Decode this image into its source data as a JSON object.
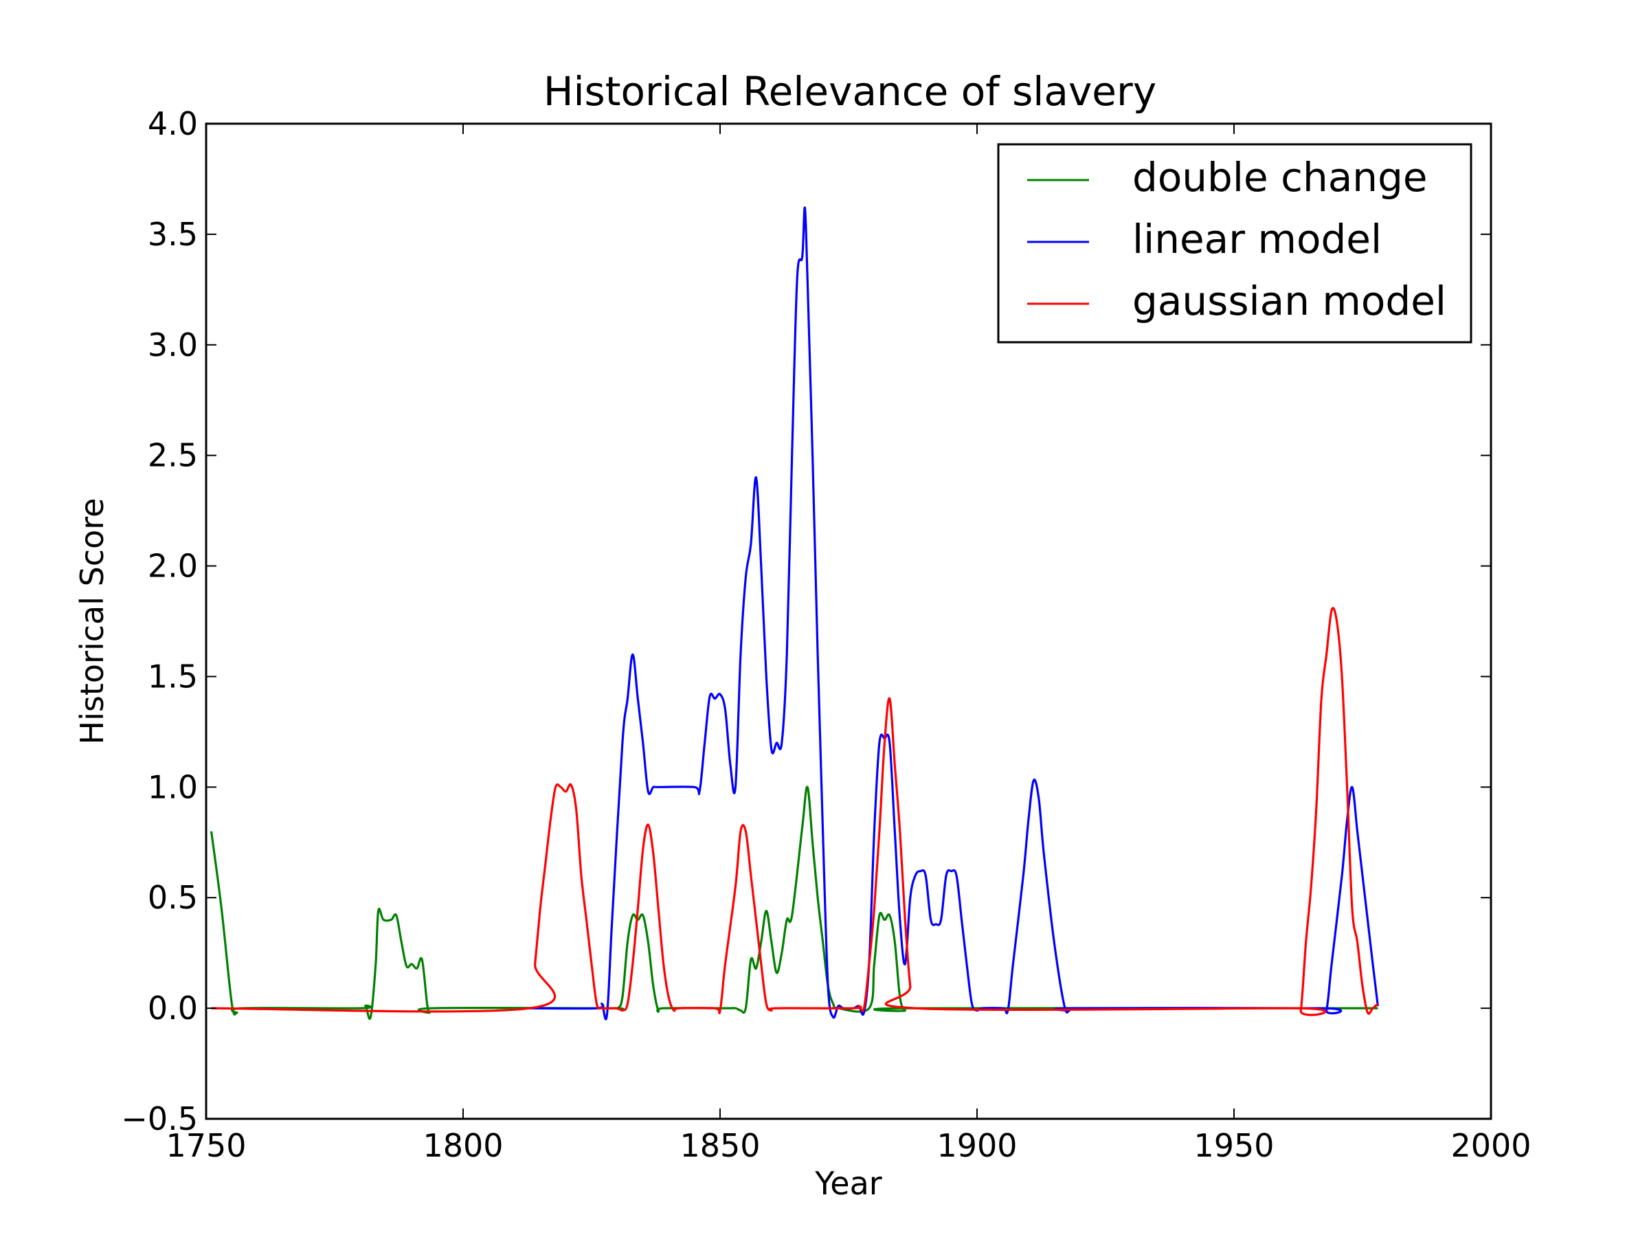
{
  "chart_data": {
    "type": "line",
    "title": "Historical Relevance of slavery",
    "xlabel": "Year",
    "ylabel": "Historical Score",
    "xlim": [
      1750,
      2000
    ],
    "ylim": [
      -0.5,
      4.0
    ],
    "xticks": [
      1750,
      1800,
      1850,
      1900,
      1950,
      2000
    ],
    "xtick_labels": [
      "1750",
      "1800",
      "1850",
      "1900",
      "1950",
      "2000"
    ],
    "yticks": [
      -0.5,
      0.0,
      0.5,
      1.0,
      1.5,
      2.0,
      2.5,
      3.0,
      3.5,
      4.0
    ],
    "ytick_labels": [
      "−0.5",
      "0.0",
      "0.5",
      "1.0",
      "1.5",
      "2.0",
      "2.5",
      "3.0",
      "3.5",
      "4.0"
    ],
    "grid": false,
    "legend_position": "top-right",
    "series": [
      {
        "name": "double change",
        "color": "#008000",
        "points": [
          [
            1751,
            0.8
          ],
          [
            1753,
            0.45
          ],
          [
            1755,
            0.02
          ],
          [
            1756,
            -0.02
          ],
          [
            1757,
            0
          ],
          [
            1780,
            0
          ],
          [
            1781,
            0.01
          ],
          [
            1782,
            -0.04
          ],
          [
            1783,
            0.2
          ],
          [
            1783.5,
            0.44
          ],
          [
            1784.5,
            0.4
          ],
          [
            1786,
            0.4
          ],
          [
            1787,
            0.42
          ],
          [
            1788,
            0.3
          ],
          [
            1789,
            0.19
          ],
          [
            1790,
            0.2
          ],
          [
            1791,
            0.18
          ],
          [
            1792,
            0.22
          ],
          [
            1793,
            0.02
          ],
          [
            1793.5,
            -0.02
          ],
          [
            1794,
            0
          ],
          [
            1828,
            0
          ],
          [
            1830,
            0
          ],
          [
            1831,
            0.05
          ],
          [
            1832,
            0.3
          ],
          [
            1833,
            0.42
          ],
          [
            1834,
            0.4
          ],
          [
            1835,
            0.42
          ],
          [
            1836,
            0.3
          ],
          [
            1837,
            0.1
          ],
          [
            1838,
            -0.01
          ],
          [
            1839,
            0
          ],
          [
            1851,
            0
          ],
          [
            1853,
            0
          ],
          [
            1854,
            -0.01
          ],
          [
            1855,
            0
          ],
          [
            1856,
            0.22
          ],
          [
            1857,
            0.18
          ],
          [
            1858,
            0.3
          ],
          [
            1859,
            0.44
          ],
          [
            1860,
            0.3
          ],
          [
            1861,
            0.16
          ],
          [
            1862,
            0.25
          ],
          [
            1863,
            0.4
          ],
          [
            1864,
            0.42
          ],
          [
            1866,
            0.82
          ],
          [
            1867,
            1.0
          ],
          [
            1868,
            0.75
          ],
          [
            1869,
            0.5
          ],
          [
            1870,
            0.3
          ],
          [
            1871,
            0.1
          ],
          [
            1872,
            0.02
          ],
          [
            1873,
            0
          ],
          [
            1879,
            0
          ],
          [
            1880,
            0.2
          ],
          [
            1881,
            0.42
          ],
          [
            1882,
            0.4
          ],
          [
            1883,
            0.42
          ],
          [
            1884,
            0.3
          ],
          [
            1885,
            0.05
          ],
          [
            1886,
            -0.01
          ],
          [
            1887,
            0
          ],
          [
            1978,
            0
          ]
        ]
      },
      {
        "name": "linear model",
        "color": "#0000ff",
        "points": [
          [
            1813,
            0
          ],
          [
            1826,
            0
          ],
          [
            1827,
            0.02
          ],
          [
            1828,
            -0.03
          ],
          [
            1829,
            0.4
          ],
          [
            1831,
            1.2
          ],
          [
            1832,
            1.4
          ],
          [
            1833,
            1.6
          ],
          [
            1834,
            1.4
          ],
          [
            1835,
            1.2
          ],
          [
            1836,
            0.98
          ],
          [
            1837,
            1.0
          ],
          [
            1838,
            1.0
          ],
          [
            1845,
            1.0
          ],
          [
            1846,
            0.98
          ],
          [
            1847,
            1.2
          ],
          [
            1848,
            1.41
          ],
          [
            1849,
            1.4
          ],
          [
            1850,
            1.42
          ],
          [
            1851,
            1.35
          ],
          [
            1852,
            1.1
          ],
          [
            1853,
            1.0
          ],
          [
            1854,
            1.6
          ],
          [
            1855,
            1.95
          ],
          [
            1856,
            2.1
          ],
          [
            1857,
            2.4
          ],
          [
            1858,
            2.0
          ],
          [
            1859,
            1.5
          ],
          [
            1860,
            1.17
          ],
          [
            1861,
            1.2
          ],
          [
            1862,
            1.2
          ],
          [
            1863,
            1.6
          ],
          [
            1864,
            2.5
          ],
          [
            1865,
            3.3
          ],
          [
            1866,
            3.4
          ],
          [
            1866.5,
            3.62
          ],
          [
            1867,
            3.3
          ],
          [
            1868,
            2.5
          ],
          [
            1869,
            1.6
          ],
          [
            1870,
            0.8
          ],
          [
            1871,
            0.1
          ],
          [
            1872,
            -0.04
          ],
          [
            1873,
            0.01
          ],
          [
            1874,
            0
          ],
          [
            1876,
            0
          ],
          [
            1877,
            0.01
          ],
          [
            1878,
            -0.02
          ],
          [
            1879,
            0.2
          ],
          [
            1880,
            0.8
          ],
          [
            1881,
            1.2
          ],
          [
            1882,
            1.22
          ],
          [
            1883,
            1.2
          ],
          [
            1884,
            0.8
          ],
          [
            1885,
            0.4
          ],
          [
            1886,
            0.2
          ],
          [
            1887,
            0.5
          ],
          [
            1888,
            0.6
          ],
          [
            1889,
            0.62
          ],
          [
            1890,
            0.6
          ],
          [
            1891,
            0.4
          ],
          [
            1892,
            0.38
          ],
          [
            1893,
            0.4
          ],
          [
            1894,
            0.6
          ],
          [
            1895,
            0.62
          ],
          [
            1896,
            0.6
          ],
          [
            1897,
            0.4
          ],
          [
            1898,
            0.2
          ],
          [
            1899,
            0.02
          ],
          [
            1900,
            -0.01
          ],
          [
            1901,
            0
          ],
          [
            1905,
            0
          ],
          [
            1906,
            -0.01
          ],
          [
            1907,
            0.2
          ],
          [
            1909,
            0.6
          ],
          [
            1910,
            0.85
          ],
          [
            1911,
            1.03
          ],
          [
            1912,
            0.95
          ],
          [
            1913,
            0.7
          ],
          [
            1915,
            0.3
          ],
          [
            1917,
            0.01
          ],
          [
            1918,
            -0.01
          ],
          [
            1919,
            0
          ],
          [
            1967,
            0
          ],
          [
            1968,
            -0.01
          ],
          [
            1969,
            0.2
          ],
          [
            1971,
            0.6
          ],
          [
            1972,
            0.85
          ],
          [
            1973,
            1.0
          ],
          [
            1974,
            0.8
          ],
          [
            1975,
            0.6
          ],
          [
            1976,
            0.4
          ],
          [
            1977,
            0.2
          ],
          [
            1978,
            0.01
          ]
        ]
      },
      {
        "name": "gaussian model",
        "color": "#ff0000",
        "points": [
          [
            1751,
            0
          ],
          [
            1813,
            0
          ],
          [
            1814,
            0.2
          ],
          [
            1815,
            0.45
          ],
          [
            1816,
            0.65
          ],
          [
            1817,
            0.85
          ],
          [
            1818,
            1.0
          ],
          [
            1819,
            1.0
          ],
          [
            1820,
            0.98
          ],
          [
            1821,
            1.01
          ],
          [
            1822,
            0.9
          ],
          [
            1823,
            0.6
          ],
          [
            1824,
            0.4
          ],
          [
            1825,
            0.2
          ],
          [
            1826,
            0.02
          ],
          [
            1827,
            0
          ],
          [
            1830,
            0
          ],
          [
            1831,
            -0.01
          ],
          [
            1832,
            0.02
          ],
          [
            1833,
            0.2
          ],
          [
            1834,
            0.45
          ],
          [
            1835,
            0.72
          ],
          [
            1836,
            0.83
          ],
          [
            1837,
            0.7
          ],
          [
            1838,
            0.45
          ],
          [
            1839,
            0.2
          ],
          [
            1840,
            0.05
          ],
          [
            1841,
            -0.01
          ],
          [
            1842,
            0
          ],
          [
            1849,
            0
          ],
          [
            1850,
            -0.01
          ],
          [
            1851,
            0.2
          ],
          [
            1853,
            0.55
          ],
          [
            1854,
            0.8
          ],
          [
            1855,
            0.8
          ],
          [
            1856,
            0.6
          ],
          [
            1857,
            0.4
          ],
          [
            1858,
            0.2
          ],
          [
            1859,
            0.02
          ],
          [
            1860,
            -0.01
          ],
          [
            1861,
            0
          ],
          [
            1876,
            0
          ],
          [
            1877,
            0.01
          ],
          [
            1878,
            0
          ],
          [
            1879,
            0.2
          ],
          [
            1880,
            0.45
          ],
          [
            1881,
            0.8
          ],
          [
            1882,
            1.2
          ],
          [
            1883,
            1.4
          ],
          [
            1884,
            1.1
          ],
          [
            1885,
            0.8
          ],
          [
            1886,
            0.4
          ],
          [
            1887,
            0.1
          ],
          [
            1888,
            0
          ],
          [
            1962,
            0
          ],
          [
            1963,
            -0.01
          ],
          [
            1964,
            0.3
          ],
          [
            1965,
            0.55
          ],
          [
            1966,
            0.9
          ],
          [
            1967,
            1.4
          ],
          [
            1968,
            1.6
          ],
          [
            1969,
            1.8
          ],
          [
            1970,
            1.75
          ],
          [
            1971,
            1.5
          ],
          [
            1972,
            1.0
          ],
          [
            1973,
            0.45
          ],
          [
            1974,
            0.3
          ],
          [
            1975,
            0.1
          ],
          [
            1976,
            -0.02
          ],
          [
            1977,
            0
          ],
          [
            1978,
            0.02
          ]
        ]
      }
    ]
  }
}
